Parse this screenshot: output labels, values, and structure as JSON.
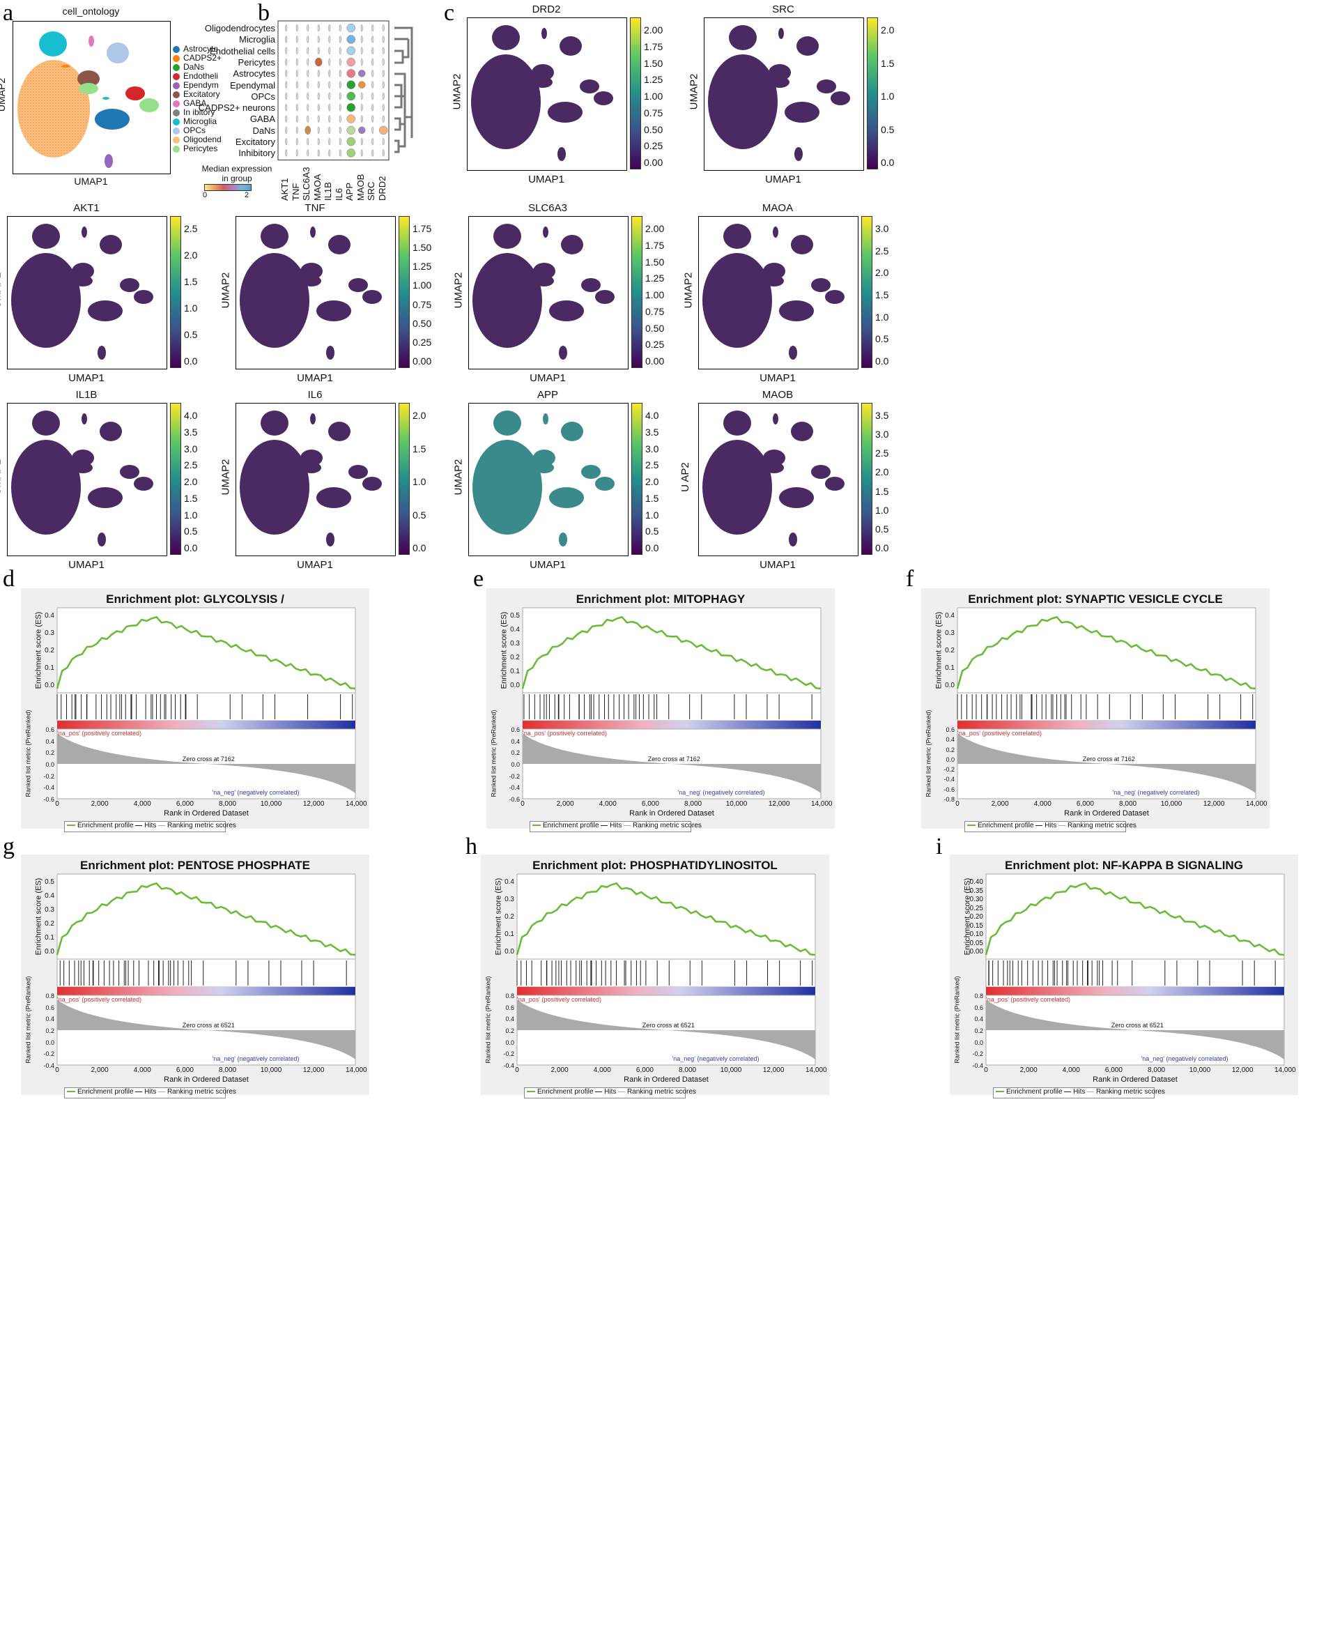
{
  "panel_labels": {
    "a": "a",
    "b": "b",
    "c": "c",
    "d": "d",
    "e": "e",
    "f": "f",
    "g": "g",
    "h": "h",
    "i": "i"
  },
  "panel_a": {
    "title": "cell_ontology",
    "xlabel": "UMAP1",
    "ylabel": "UMAP2",
    "legend": [
      {
        "label": "Astrocyte",
        "color": "#1f77b4"
      },
      {
        "label": "CADPS2+",
        "color": "#ff7f0e"
      },
      {
        "label": "DaNs",
        "color": "#2ca02c"
      },
      {
        "label": "Endotheli",
        "color": "#d62728"
      },
      {
        "label": "Ependym",
        "color": "#9467bd"
      },
      {
        "label": "Excitatory",
        "color": "#8c564b"
      },
      {
        "label": "GABA",
        "color": "#e377c2"
      },
      {
        "label": "In  ibitory",
        "color": "#7f7f7f"
      },
      {
        "label": "Microglia",
        "color": "#17becf"
      },
      {
        "label": "OPCs",
        "color": "#aec7e8"
      },
      {
        "label": "Oligodend",
        "color": "#ffbb78"
      },
      {
        "label": "Pericytes",
        "color": "#98df8a"
      }
    ]
  },
  "panel_b": {
    "rows": [
      "Oligodendrocytes",
      "Microglia",
      "Endothelial cells",
      "Pericytes",
      "Astrocytes",
      "Ependymal",
      "OPCs",
      "CADPS2+ neurons",
      "GABA",
      "DaNs",
      "Excitatory",
      "Inhibitory"
    ],
    "genes": [
      "AKT1",
      "TNF",
      "SLC6A3",
      "MAOA",
      "IL1B",
      "IL6",
      "APP",
      "MAOB",
      "SRC",
      "DRD2"
    ],
    "legend_title": "Median expression\nin group",
    "legend_title_1": "Median expression",
    "legend_title_2": "in group",
    "legend_min": "0",
    "legend_max": "2"
  },
  "feature_plots": [
    {
      "gene": "DRD2",
      "ticks": [
        "2.00",
        "1.75",
        "1.50",
        "1.25",
        "1.00",
        "0.75",
        "0.50",
        "0.25",
        "0.00"
      ],
      "ylabel": "UMAP2",
      "xlabel": "UMAP1"
    },
    {
      "gene": "SRC",
      "ticks": [
        "2.0",
        "1.5",
        "1.0",
        "0.5",
        "0.0"
      ],
      "ylabel": "UMAP2",
      "xlabel": "UMAP1"
    },
    {
      "gene": "AKT1",
      "ticks": [
        "2.5",
        "2.0",
        "1.5",
        "1.0",
        "0.5",
        "0.0"
      ],
      "ylabel": "UMAP2",
      "xlabel": "UMAP1"
    },
    {
      "gene": "TNF",
      "ticks": [
        "1.75",
        "1.50",
        "1.25",
        "1.00",
        "0.75",
        "0.50",
        "0.25",
        "0.00"
      ],
      "ylabel": "UMAP2",
      "xlabel": "UMAP1"
    },
    {
      "gene": "SLC6A3",
      "ticks": [
        "2.00",
        "1.75",
        "1.50",
        "1.25",
        "1.00",
        "0.75",
        "0.50",
        "0.25",
        "0.00"
      ],
      "ylabel": "UMAP2",
      "xlabel": "UMAP1"
    },
    {
      "gene": "MAOA",
      "ticks": [
        "3.0",
        "2.5",
        "2.0",
        "1.5",
        "1.0",
        "0.5",
        "0.0"
      ],
      "ylabel": "UMAP2",
      "xlabel": "UMAP1"
    },
    {
      "gene": "IL1B",
      "ticks": [
        "4.0",
        "3.5",
        "3.0",
        "2.5",
        "2.0",
        "1.5",
        "1.0",
        "0.5",
        "0.0"
      ],
      "ylabel": "UMAP2",
      "xlabel": "UMAP1"
    },
    {
      "gene": "IL6",
      "ticks": [
        "2.0",
        "1.5",
        "1.0",
        "0.5",
        "0.0"
      ],
      "ylabel": "UMAP2",
      "xlabel": "UMAP1"
    },
    {
      "gene": "APP",
      "ticks": [
        "4.0",
        "3.5",
        "3.0",
        "2.5",
        "2.0",
        "1.5",
        "1.0",
        "0.5",
        "0.0"
      ],
      "ylabel": "UMAP2",
      "xlabel": "UMAP1"
    },
    {
      "gene": "MAOB",
      "ticks": [
        "3.5",
        "3.0",
        "2.5",
        "2.0",
        "1.5",
        "1.0",
        "0.5",
        "0.0"
      ],
      "ylabel": "U    AP2",
      "xlabel": "UMAP1"
    }
  ],
  "gsea": [
    {
      "title": "Enrichment plot: GLYCOLYSIS / GLUCONEOGENESIS",
      "es_ticks": [
        "0.4",
        "0.3",
        "0.2",
        "0.1",
        "0.0"
      ],
      "rank_ticks": [
        "0.6",
        "0.4",
        "0.2",
        "0.0",
        "-0.2",
        "-0.4",
        "-0.6"
      ],
      "zero_cross": "Zero cross at 7162"
    },
    {
      "title": "Enrichment plot: MITOPHAGY",
      "es_ticks": [
        "0.5",
        "0.4",
        "0.3",
        "0.2",
        "0.1",
        "0.0"
      ],
      "rank_ticks": [
        "0.6",
        "0.4",
        "0.2",
        "0.0",
        "-0.2",
        "-0.4",
        "-0.6"
      ],
      "zero_cross": "Zero cross at 7162"
    },
    {
      "title": "Enrichment plot: SYNAPTIC VESICLE CYCLE",
      "es_ticks": [
        "0.4",
        "0.3",
        "0.2",
        "0.1",
        "0.0"
      ],
      "rank_ticks": [
        "0.6",
        "0.4",
        "0.2",
        "0.0",
        "-0.2",
        "-0.4",
        "-0.6",
        "-0.8"
      ],
      "zero_cross": "Zero cross at 7162"
    },
    {
      "title": "Enrichment plot: PENTOSE PHOSPHATE PATHWAY",
      "es_ticks": [
        "0.5",
        "0.4",
        "0.3",
        "0.2",
        "0.1",
        "0.0"
      ],
      "rank_ticks": [
        "0.8",
        "0.6",
        "0.4",
        "0.2",
        "0.0",
        "-0.2",
        "-0.4"
      ],
      "zero_cross": "Zero cross at 6521"
    },
    {
      "title": "Enrichment plot: PHOSPHATIDYLINOSITOL SIGNALING SYSTEM",
      "es_ticks": [
        "0.4",
        "0.3",
        "0.2",
        "0.1",
        "0.0"
      ],
      "rank_ticks": [
        "0.8",
        "0.6",
        "0.4",
        "0.2",
        "0.0",
        "-0.2",
        "-0.4"
      ],
      "zero_cross": "Zero cross at 6521"
    },
    {
      "title": "Enrichment plot: NF-KAPPA B SIGNALING PATHWAY",
      "es_ticks": [
        "0.40",
        "0.35",
        "0.30",
        "0.25",
        "0.20",
        "0.15",
        "0.10",
        "0.05",
        "0.00"
      ],
      "rank_ticks": [
        "0.8",
        "0.6",
        "0.4",
        "0.2",
        "0.0",
        "-0.2",
        "-0.4"
      ],
      "zero_cross": "Zero cross at 6521"
    }
  ],
  "gsea_common": {
    "es_ylabel": "Enrichment score (ES)",
    "rank_ylabel": "Ranked list metric (PreRanked)",
    "xlabel": "Rank in Ordered Dataset",
    "x_ticks": [
      "0",
      "2,000",
      "4,000",
      "6,000",
      "8,000",
      "10,000",
      "12,000",
      "14,000"
    ],
    "pos_label": "'na_pos' (positively correlated)",
    "neg_label": "'na_neg' (negatively correlated)",
    "legend_profile": "Enrichment profile",
    "legend_hits": "Hits",
    "legend_metric": "Ranking metric scores"
  }
}
